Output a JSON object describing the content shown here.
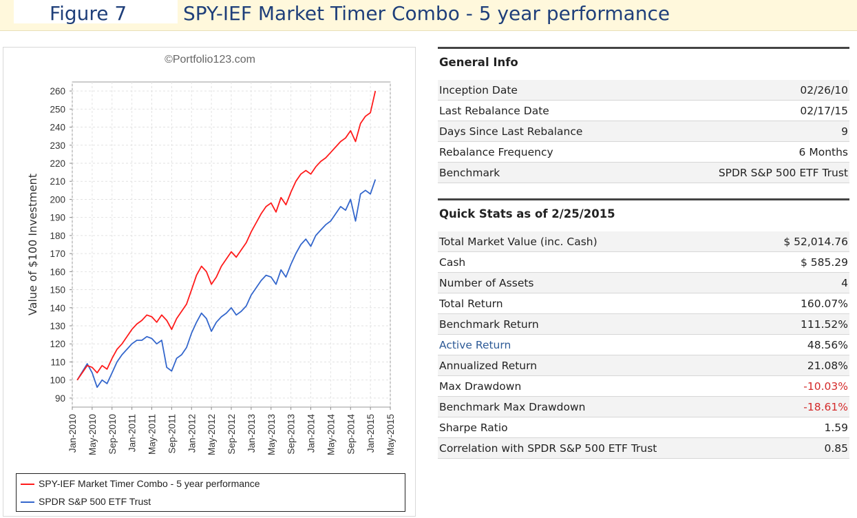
{
  "header": {
    "figure_label": "Figure 7",
    "title": "SPY-IEF Market Timer Combo - 5 year performance"
  },
  "chart_data": {
    "type": "line",
    "watermark": "©Portfolio123.com",
    "ylabel": "Value of $100 Investment",
    "xlabel": "",
    "ylim": [
      85,
      265
    ],
    "yticks": [
      90,
      100,
      110,
      120,
      130,
      140,
      150,
      160,
      170,
      180,
      190,
      200,
      210,
      220,
      230,
      240,
      250,
      260
    ],
    "xticks": [
      "Jan-2010",
      "May-2010",
      "Sep-2010",
      "Jan-2011",
      "May-2011",
      "Sep-2011",
      "Jan-2012",
      "May-2012",
      "Sep-2012",
      "Jan-2013",
      "May-2013",
      "Sep-2013",
      "Jan-2014",
      "May-2014",
      "Sep-2014",
      "Jan-2015",
      "May-2015"
    ],
    "x": [
      "2010-02",
      "2010-04",
      "2010-05",
      "2010-06",
      "2010-07",
      "2010-08",
      "2010-09",
      "2010-10",
      "2010-11",
      "2010-12",
      "2011-01",
      "2011-02",
      "2011-03",
      "2011-04",
      "2011-05",
      "2011-06",
      "2011-07",
      "2011-08",
      "2011-09",
      "2011-10",
      "2011-11",
      "2011-12",
      "2012-01",
      "2012-02",
      "2012-03",
      "2012-04",
      "2012-05",
      "2012-06",
      "2012-07",
      "2012-08",
      "2012-09",
      "2012-10",
      "2012-11",
      "2012-12",
      "2013-01",
      "2013-02",
      "2013-03",
      "2013-04",
      "2013-05",
      "2013-06",
      "2013-07",
      "2013-08",
      "2013-09",
      "2013-10",
      "2013-11",
      "2013-12",
      "2014-01",
      "2014-02",
      "2014-03",
      "2014-04",
      "2014-05",
      "2014-06",
      "2014-07",
      "2014-08",
      "2014-09",
      "2014-10",
      "2014-11",
      "2014-12",
      "2015-01",
      "2015-02"
    ],
    "series": [
      {
        "name": "SPY-IEF Market Timer Combo - 5 year performance",
        "color": "#ff1a1a",
        "values": [
          100,
          108,
          107,
          104,
          108,
          106,
          112,
          117,
          120,
          124,
          128,
          131,
          133,
          136,
          135,
          132,
          136,
          133,
          128,
          134,
          138,
          142,
          150,
          158,
          163,
          160,
          153,
          157,
          163,
          167,
          171,
          168,
          172,
          176,
          182,
          187,
          192,
          196,
          198,
          193,
          201,
          197,
          204,
          210,
          214,
          216,
          214,
          218,
          221,
          223,
          226,
          229,
          232,
          234,
          238,
          232,
          242,
          246,
          248,
          260
        ]
      },
      {
        "name": "SPDR S&P 500 ETF Trust",
        "color": "#3366cc",
        "values": [
          100,
          109,
          104,
          96,
          100,
          98,
          104,
          110,
          114,
          117,
          120,
          122,
          122,
          124,
          123,
          120,
          122,
          107,
          105,
          112,
          114,
          118,
          126,
          132,
          137,
          134,
          127,
          132,
          135,
          137,
          140,
          136,
          138,
          141,
          147,
          151,
          155,
          158,
          157,
          153,
          161,
          157,
          164,
          170,
          175,
          178,
          174,
          180,
          183,
          186,
          188,
          192,
          196,
          194,
          200,
          188,
          203,
          205,
          203,
          211
        ]
      }
    ],
    "legend_position": "bottom",
    "grid": true
  },
  "general_info": {
    "title": "General Info",
    "rows": [
      {
        "label": "Inception Date",
        "value": "02/26/10"
      },
      {
        "label": "Last Rebalance Date",
        "value": "02/17/15"
      },
      {
        "label": "Days Since Last Rebalance",
        "value": "9"
      },
      {
        "label": "Rebalance Frequency",
        "value": "6 Months"
      },
      {
        "label": "Benchmark",
        "value": "SPDR S&P 500 ETF Trust"
      }
    ]
  },
  "quick_stats": {
    "title": "Quick Stats as of 2/25/2015",
    "rows": [
      {
        "label": "Total Market Value (inc. Cash)",
        "value": "$ 52,014.76"
      },
      {
        "label": "Cash",
        "value": "$ 585.29"
      },
      {
        "label": "Number of Assets",
        "value": "4"
      },
      {
        "label": "Total Return",
        "value": "160.07%"
      },
      {
        "label": "Benchmark Return",
        "value": "111.52%"
      },
      {
        "label": "Active Return",
        "value": "48.56%"
      },
      {
        "label": "Annualized Return",
        "value": "21.08%"
      },
      {
        "label": "Max Drawdown",
        "value": "-10.03%"
      },
      {
        "label": "Benchmark Max Drawdown",
        "value": "-18.61%"
      },
      {
        "label": "Sharpe Ratio",
        "value": "1.59"
      },
      {
        "label": "Correlation with SPDR S&P 500 ETF Trust",
        "value": "0.85"
      }
    ]
  },
  "colors": {
    "link": "#2d5a96",
    "negative": "#d42a2a",
    "title": "#1f3f7a",
    "banner_bg": "#fff8dc"
  }
}
